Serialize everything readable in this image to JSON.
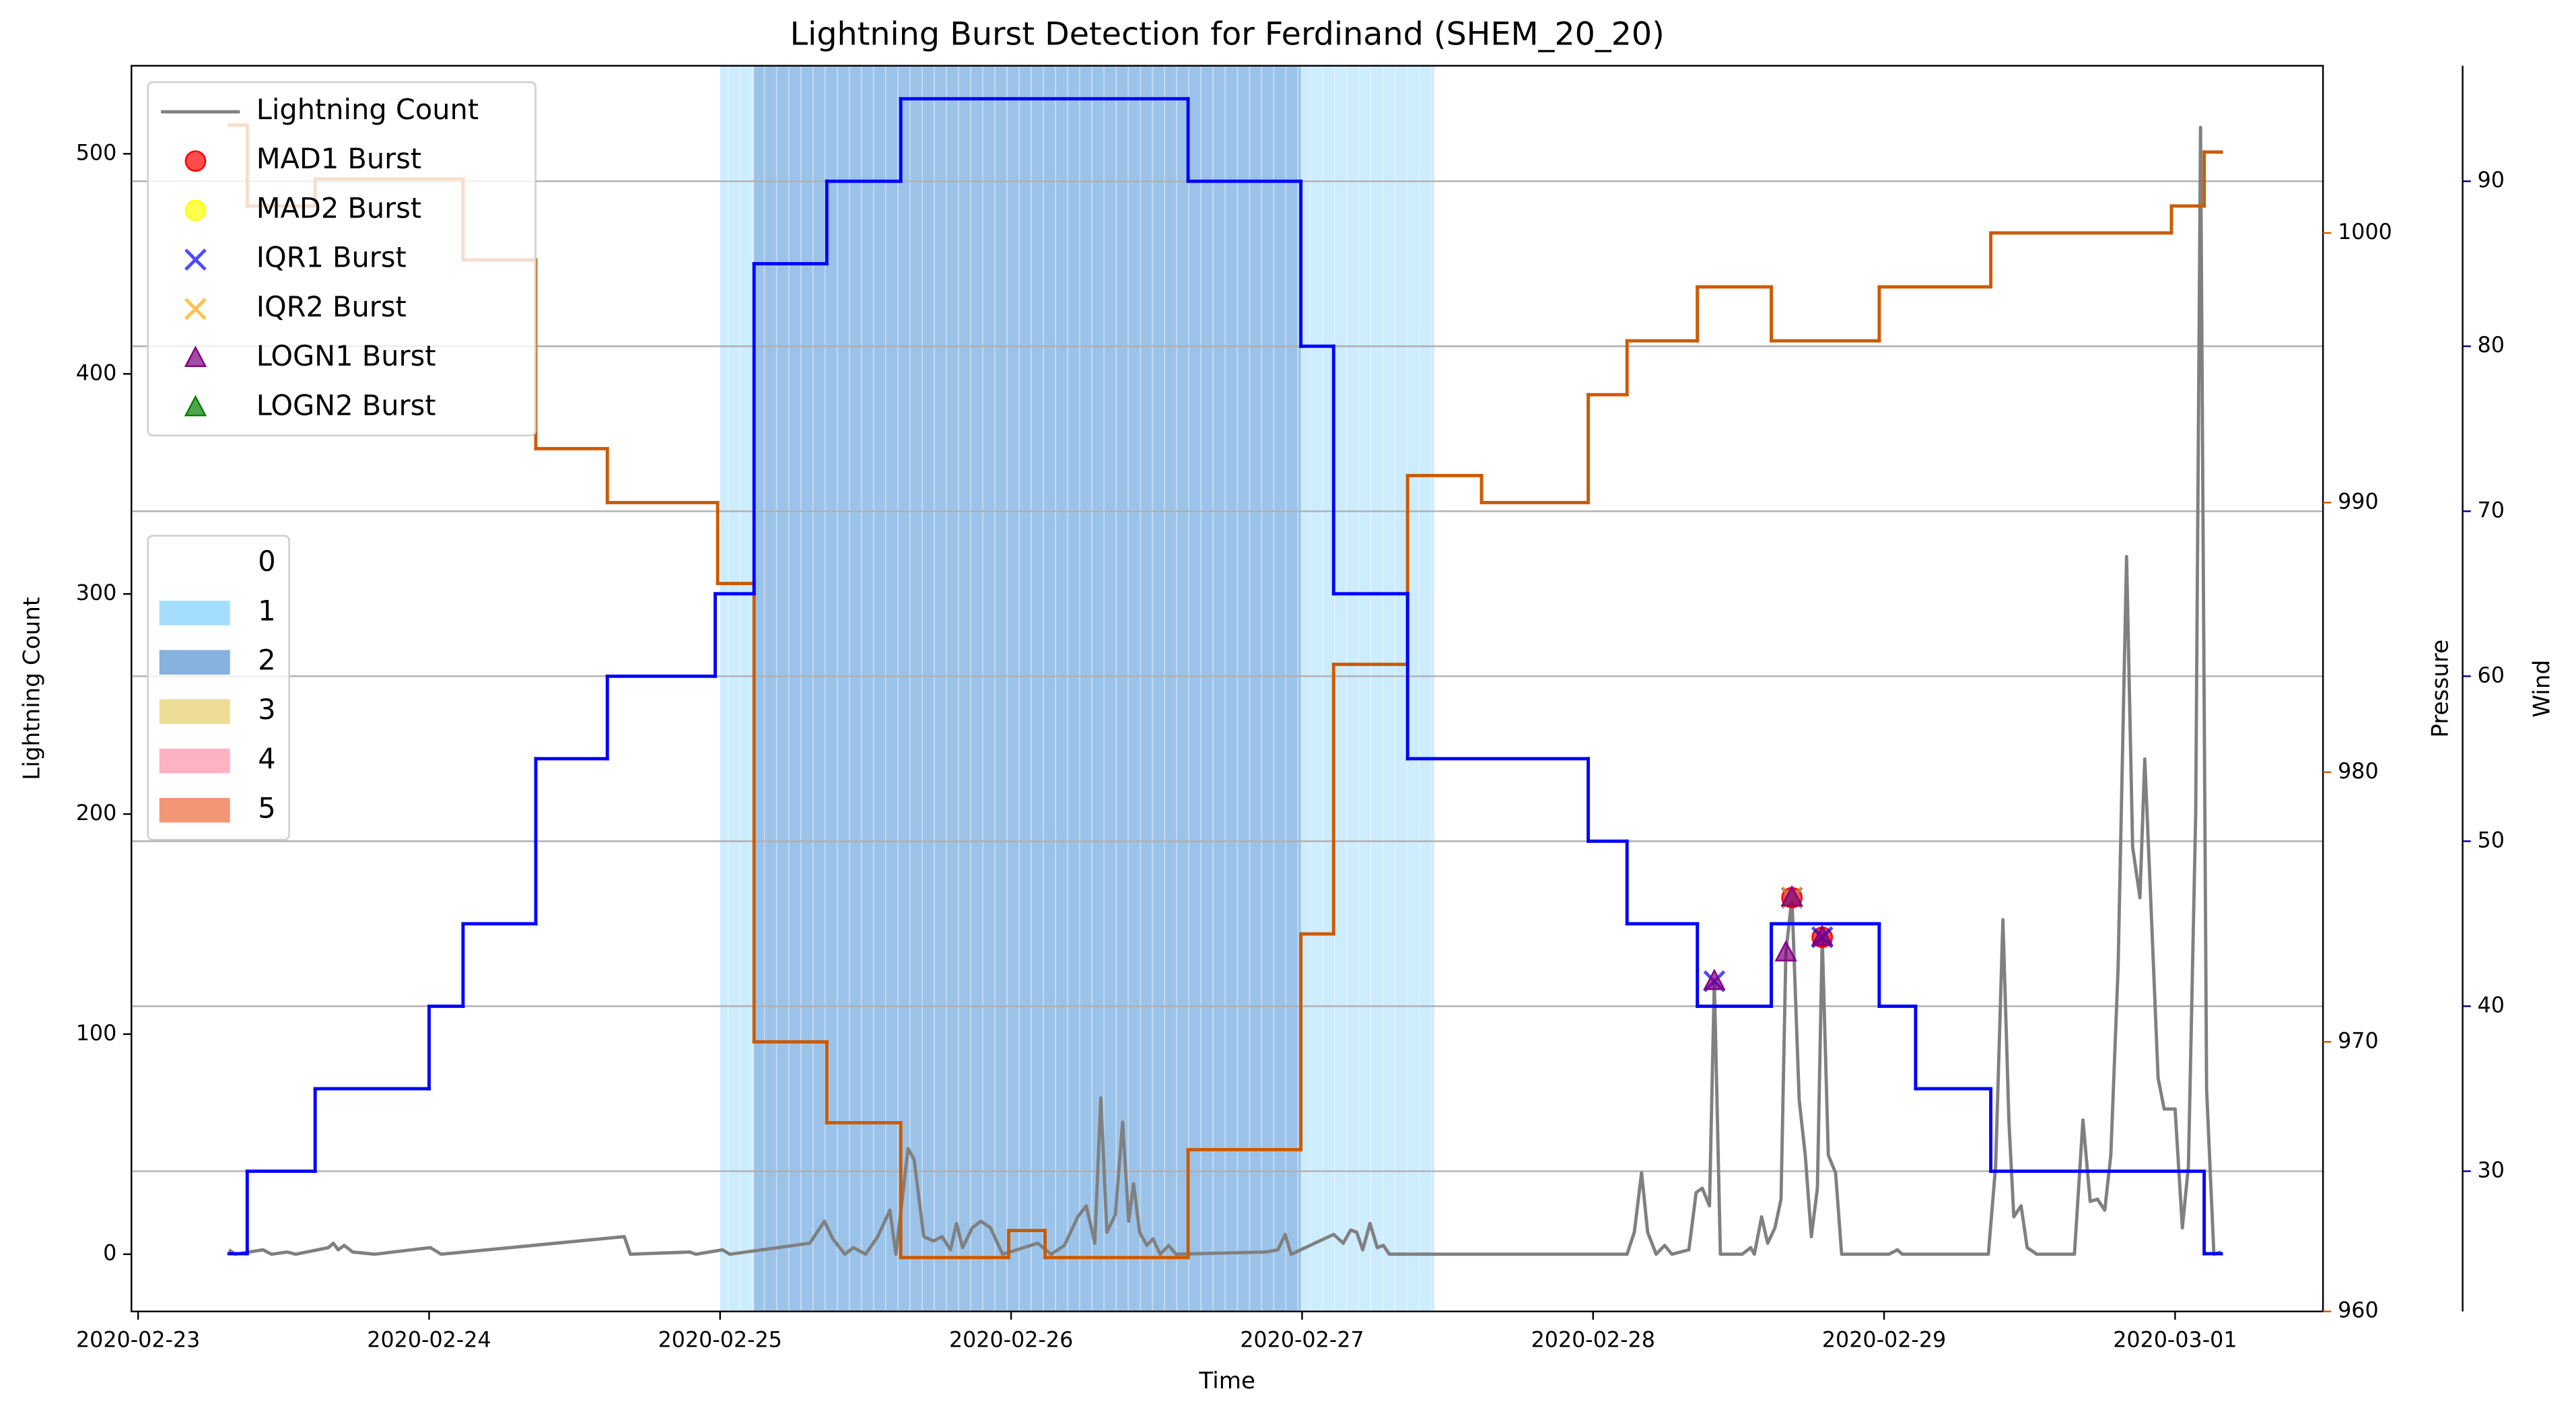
{
  "chart_data": {
    "type": "line",
    "title": "Lightning Burst Detection for Ferdinand (SHEM_20_20)",
    "xlabel": "Time",
    "ylabel": "Lightning Count",
    "y2label": "Pressure",
    "y3label": "Wind",
    "xlim": [
      "2020-02-22T23:27",
      "2020-03-01T12:12"
    ],
    "xticks": [
      "2020-02-23",
      "2020-02-24",
      "2020-02-25",
      "2020-02-26",
      "2020-02-27",
      "2020-02-28",
      "2020-02-29",
      "2020-03-01"
    ],
    "ylim": [
      -26,
      540
    ],
    "yticks": [
      0,
      100,
      200,
      300,
      400,
      500
    ],
    "y2lim": [
      960,
      1006.2
    ],
    "y2ticks": [
      960,
      970,
      980,
      990,
      1000
    ],
    "y3lim": [
      21.5,
      97
    ],
    "y3ticks": [
      30,
      40,
      50,
      60,
      70,
      80,
      90
    ],
    "grid_axis": "y3",
    "legend_loc": "upper left",
    "levels_legend_loc": "center left",
    "label_colors": {
      "y": "#808080",
      "y2": "#cc5a00",
      "y3": "#00008b"
    },
    "series": [
      {
        "name": "Lightning Count",
        "color": "#808080",
        "axis": "y",
        "x": [
          "2020-02-23T07:30",
          "2020-02-23T08:00",
          "2020-02-23T10:18",
          "2020-02-23T11:00",
          "2020-02-23T12:18",
          "2020-02-23T13:00",
          "2020-02-23T15:42",
          "2020-02-23T16:06",
          "2020-02-23T16:30",
          "2020-02-23T17:00",
          "2020-02-23T17:42",
          "2020-02-23T19:30",
          "2020-02-24T00:06",
          "2020-02-24T01:00",
          "2020-02-24T16:06",
          "2020-02-24T16:36",
          "2020-02-24T21:30",
          "2020-02-24T22:00",
          "2020-02-25T00:12",
          "2020-02-25T00:48",
          "2020-02-25T07:24",
          "2020-02-25T08:36",
          "2020-02-25T09:18",
          "2020-02-25T10:18",
          "2020-02-25T11:00",
          "2020-02-25T12:00",
          "2020-02-25T13:00",
          "2020-02-25T14:00",
          "2020-02-25T14:30",
          "2020-02-25T15:30",
          "2020-02-25T16:00",
          "2020-02-25T16:48",
          "2020-02-25T17:36",
          "2020-02-25T18:18",
          "2020-02-25T19:00",
          "2020-02-25T19:30",
          "2020-02-25T20:00",
          "2020-02-25T20:48",
          "2020-02-25T21:30",
          "2020-02-25T22:18",
          "2020-02-25T23:18",
          "2020-02-26T02:12",
          "2020-02-26T03:18",
          "2020-02-26T04:24",
          "2020-02-26T05:30",
          "2020-02-26T06:12",
          "2020-02-26T06:54",
          "2020-02-26T07:24",
          "2020-02-26T07:54",
          "2020-02-26T08:36",
          "2020-02-26T09:12",
          "2020-02-26T09:42",
          "2020-02-26T10:06",
          "2020-02-26T10:36",
          "2020-02-26T11:12",
          "2020-02-26T11:42",
          "2020-02-26T12:18",
          "2020-02-26T13:00",
          "2020-02-26T13:36",
          "2020-02-26T21:00",
          "2020-02-26T22:00",
          "2020-02-26T22:36",
          "2020-02-26T23:06",
          "2020-02-27T02:36",
          "2020-02-27T03:24",
          "2020-02-27T04:00",
          "2020-02-27T04:30",
          "2020-02-27T05:00",
          "2020-02-27T05:36",
          "2020-02-27T06:12",
          "2020-02-27T06:42",
          "2020-02-27T07:12",
          "2020-02-28T02:48",
          "2020-02-28T03:24",
          "2020-02-28T04:00",
          "2020-02-28T04:30",
          "2020-02-28T05:12",
          "2020-02-28T05:54",
          "2020-02-28T06:30",
          "2020-02-28T07:54",
          "2020-02-28T08:30",
          "2020-02-28T09:00",
          "2020-02-28T09:36",
          "2020-02-28T10:00",
          "2020-02-28T10:30",
          "2020-02-28T12:18",
          "2020-02-28T13:00",
          "2020-02-28T13:18",
          "2020-02-28T13:54",
          "2020-02-28T14:24",
          "2020-02-28T15:00",
          "2020-02-28T15:30",
          "2020-02-28T15:54",
          "2020-02-28T16:24",
          "2020-02-28T17:00",
          "2020-02-28T17:30",
          "2020-02-28T18:00",
          "2020-02-28T18:30",
          "2020-02-28T18:54",
          "2020-02-28T19:24",
          "2020-02-28T20:00",
          "2020-02-28T20:30",
          "2020-02-29T00:24",
          "2020-02-29T01:06",
          "2020-02-29T01:30",
          "2020-02-29T08:36",
          "2020-02-29T09:12",
          "2020-02-29T09:48",
          "2020-02-29T10:18",
          "2020-02-29T10:42",
          "2020-02-29T11:18",
          "2020-02-29T11:48",
          "2020-02-29T12:36",
          "2020-02-29T15:42",
          "2020-02-29T16:24",
          "2020-02-29T17:00",
          "2020-02-29T17:36",
          "2020-02-29T18:12",
          "2020-02-29T18:42",
          "2020-02-29T19:18",
          "2020-02-29T20:00",
          "2020-02-29T20:30",
          "2020-02-29T21:06",
          "2020-02-29T21:30",
          "2020-02-29T22:00",
          "2020-02-29T22:36",
          "2020-02-29T23:06",
          "2020-03-01T00:00",
          "2020-03-01T00:36",
          "2020-03-01T01:06",
          "2020-03-01T01:42",
          "2020-03-01T02:06",
          "2020-03-01T02:36",
          "2020-03-01T03:12",
          "2020-03-01T03:48"
        ],
        "values": [
          2,
          0,
          2,
          0,
          1,
          0,
          3,
          5,
          2,
          4,
          1,
          0,
          3,
          0,
          8,
          0,
          1,
          0,
          2,
          0,
          5,
          15,
          7,
          0,
          3,
          0,
          8,
          20,
          0,
          48,
          43,
          8,
          6,
          8,
          2,
          14,
          3,
          12,
          15,
          12,
          0,
          5,
          0,
          4,
          17,
          22,
          5,
          71,
          10,
          18,
          60,
          15,
          32,
          10,
          4,
          7,
          0,
          4,
          0,
          1,
          2,
          9,
          0,
          9,
          5,
          11,
          10,
          2,
          14,
          3,
          4,
          0,
          0,
          10,
          37,
          10,
          0,
          4,
          0,
          2,
          28,
          30,
          22,
          124,
          0,
          0,
          3,
          0,
          17,
          5,
          12,
          25,
          137,
          162,
          70,
          45,
          8,
          30,
          144,
          45,
          37,
          0,
          0,
          2,
          0,
          0,
          40,
          152,
          60,
          17,
          22,
          3,
          0,
          0,
          61,
          24,
          25,
          20,
          45,
          130,
          317,
          185,
          162,
          225,
          160,
          80,
          66,
          66,
          12,
          40,
          200,
          512,
          75,
          0,
          1
        ]
      },
      {
        "color": "#cc5a00",
        "axis": "y2",
        "drawstyle": "steps-post",
        "x": [
          "2020-02-23T07:30",
          "2020-02-23T09:00",
          "2020-02-23T14:36",
          "2020-02-24T02:48",
          "2020-02-24T08:48",
          "2020-02-24T14:42",
          "2020-02-24T23:48",
          "2020-02-25T02:48",
          "2020-02-25T08:48",
          "2020-02-25T14:54",
          "2020-02-25T23:48",
          "2020-02-26T02:48",
          "2020-02-26T14:36",
          "2020-02-26T23:54",
          "2020-02-27T02:36",
          "2020-02-27T08:42",
          "2020-02-27T14:48",
          "2020-02-27T23:36",
          "2020-02-28T02:48",
          "2020-02-28T08:36",
          "2020-02-28T14:42",
          "2020-02-28T23:36",
          "2020-02-29T08:48",
          "2020-02-29T23:42",
          "2020-03-01T02:24",
          "2020-03-01T03:48"
        ],
        "values": [
          1004,
          1001,
          1002,
          999,
          992,
          990,
          987,
          970,
          967,
          962,
          963,
          962,
          966,
          974,
          984,
          991,
          990,
          994,
          996,
          998,
          996,
          998,
          1000,
          1001,
          1003,
          1003
        ]
      },
      {
        "color": "#0000ff",
        "axis": "y3",
        "drawstyle": "steps-post",
        "x": [
          "2020-02-23T07:30",
          "2020-02-23T09:00",
          "2020-02-23T14:36",
          "2020-02-24T00:00",
          "2020-02-24T02:48",
          "2020-02-24T08:48",
          "2020-02-24T14:42",
          "2020-02-24T23:36",
          "2020-02-25T02:48",
          "2020-02-25T08:48",
          "2020-02-25T14:54",
          "2020-02-26T14:36",
          "2020-02-26T23:54",
          "2020-02-27T02:36",
          "2020-02-27T08:42",
          "2020-02-27T23:36",
          "2020-02-28T02:48",
          "2020-02-28T08:36",
          "2020-02-28T14:42",
          "2020-02-28T23:36",
          "2020-02-29T02:36",
          "2020-02-29T08:48",
          "2020-03-01T02:24",
          "2020-03-01T03:48"
        ],
        "values": [
          25,
          30,
          35,
          40,
          45,
          55,
          60,
          65,
          85,
          90,
          95,
          90,
          80,
          65,
          55,
          50,
          45,
          40,
          45,
          40,
          35,
          30,
          25,
          25
        ]
      }
    ],
    "bursts": [
      {
        "name": "MAD1 Burst",
        "color": "#ff0000",
        "marker": "o",
        "x": [
          "2020-02-28T16:24",
          "2020-02-28T18:54"
        ],
        "values": [
          162,
          144
        ]
      },
      {
        "name": "MAD2 Burst",
        "color": "#ffff00",
        "marker": "o",
        "x": [],
        "values": []
      },
      {
        "name": "IQR1 Burst",
        "color": "#0000ff",
        "marker": "x",
        "x": [
          "2020-02-28T10:00",
          "2020-02-28T16:24",
          "2020-02-28T18:54"
        ],
        "values": [
          124,
          162,
          144
        ]
      },
      {
        "name": "IQR2 Burst",
        "color": "#ffa500",
        "marker": "x",
        "x": [
          "2020-02-28T16:24"
        ],
        "values": [
          162
        ]
      },
      {
        "name": "LOGN1 Burst",
        "color": "#800080",
        "marker": "^",
        "x": [
          "2020-02-28T10:00",
          "2020-02-28T15:54",
          "2020-02-28T16:24",
          "2020-02-28T18:54"
        ],
        "values": [
          124,
          137,
          162,
          144
        ]
      },
      {
        "name": "LOGN2 Burst",
        "color": "#008000",
        "marker": "^",
        "x": [],
        "values": []
      }
    ],
    "levels": [
      {
        "label": "0",
        "color": "none"
      },
      {
        "label": "1",
        "color": "#9bdafc"
      },
      {
        "label": "2",
        "color": "#7aa8dc"
      },
      {
        "label": "3",
        "color": "#ecd98a"
      },
      {
        "label": "4",
        "color": "#ffabbb"
      },
      {
        "label": "5",
        "color": "#f28b66"
      }
    ],
    "spans": [
      {
        "level": 1,
        "start": "2020-02-25T00:00",
        "end": "2020-02-27T10:54"
      },
      {
        "level": 2,
        "start": "2020-02-25T02:48",
        "end": "2020-02-26T23:54"
      }
    ]
  }
}
